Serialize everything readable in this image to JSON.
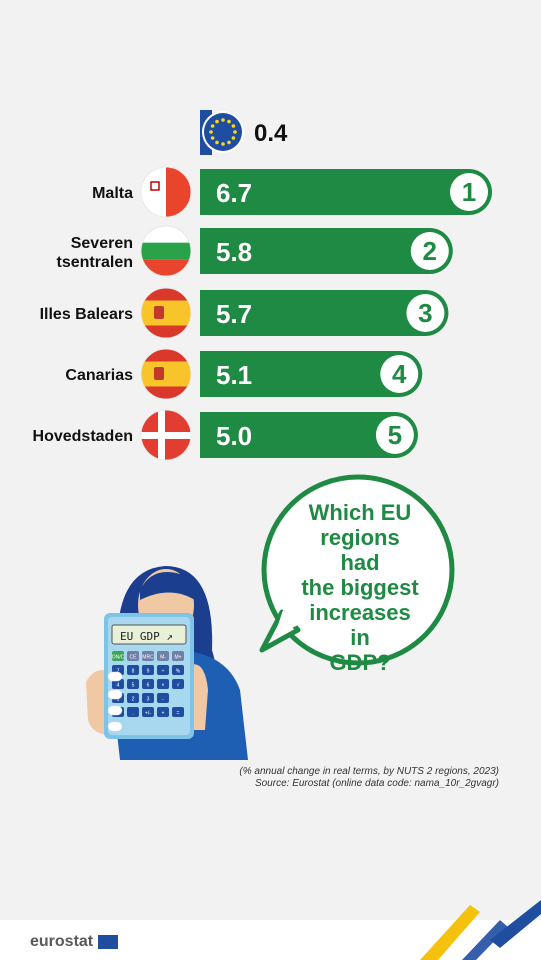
{
  "chart_data": {
    "type": "bar",
    "eu": {
      "label": "EU",
      "value_label": "0.4"
    },
    "categories": [
      "Malta",
      "Severen tsentralen",
      "Illes Balears",
      "Canarias",
      "Hovedstaden"
    ],
    "category_lines": [
      [
        "Malta"
      ],
      [
        "Severen",
        "tsentralen"
      ],
      [
        "Illes Balears"
      ],
      [
        "Canarias"
      ],
      [
        "Hovedstaden"
      ]
    ],
    "values": [
      6.7,
      5.8,
      5.7,
      5.1,
      5.0
    ],
    "value_labels": [
      "6.7",
      "5.8",
      "5.7",
      "5.1",
      "5.0"
    ],
    "ranks": [
      "1",
      "2",
      "3",
      "4",
      "5"
    ],
    "flags": [
      "malta-flag-icon",
      "bulgaria-flag-icon",
      "spain-flag-icon",
      "spain-flag-icon",
      "denmark-flag-icon"
    ],
    "xlim": [
      0,
      6.7
    ]
  },
  "colors": {
    "bar": "#1f8a43",
    "background": "#f2f2f2",
    "eu_blue": "#1f4ea1",
    "eu_star": "#ffd617"
  },
  "speech_bubble": {
    "lines": [
      "Which EU",
      "regions had",
      "the biggest",
      "increases in",
      "GDP?"
    ]
  },
  "calculator": {
    "display": "EU GDP ↗",
    "keys": [
      "ON/C",
      "CE",
      "MRC",
      "M-",
      "M+",
      "7",
      "8",
      "9",
      "÷",
      "%",
      "4",
      "5",
      "6",
      "×",
      "√",
      "1",
      "2",
      "3",
      "-",
      "",
      "0",
      ".",
      "+/-",
      "+",
      "="
    ]
  },
  "caption": {
    "line1": "(% annual  change in real terms, by NUTS 2 regions, 2023)",
    "line2": "Source: Eurostat (online data code: nama_10r_2gvagr)"
  },
  "footer": {
    "brand": "eurostat"
  }
}
